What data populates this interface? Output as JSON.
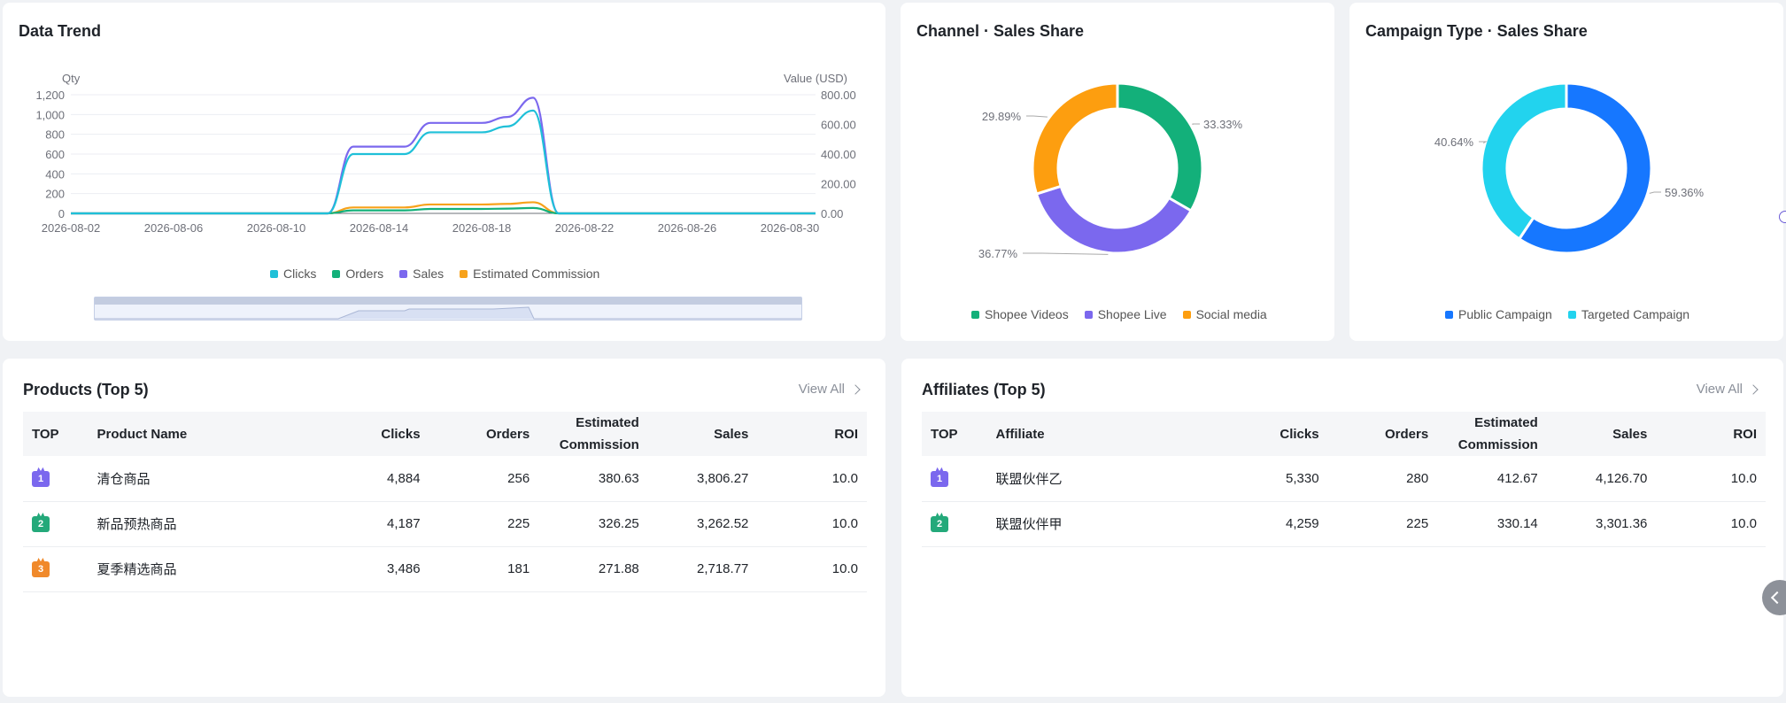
{
  "trend": {
    "title": "Data Trend",
    "left_axis_label": "Qty",
    "right_axis_label": "Value (USD)",
    "left_ticks": [
      "1,200",
      "1,000",
      "800",
      "600",
      "400",
      "200",
      "0"
    ],
    "right_ticks": [
      "800.00",
      "600.00",
      "400.00",
      "200.00",
      "0.00"
    ],
    "x_ticks": [
      "2026-08-02",
      "2026-08-06",
      "2026-08-10",
      "2026-08-14",
      "2026-08-18",
      "2026-08-22",
      "2026-08-26",
      "2026-08-30"
    ],
    "legend": [
      {
        "label": "Clicks",
        "color": "#1fc0d8"
      },
      {
        "label": "Orders",
        "color": "#13b07a"
      },
      {
        "label": "Sales",
        "color": "#7b68ee"
      },
      {
        "label": "Estimated Commission",
        "color": "#f7a21b"
      }
    ]
  },
  "chart_data": [
    {
      "type": "line",
      "x": [
        "2026-08-02",
        "2026-08-03",
        "2026-08-04",
        "2026-08-05",
        "2026-08-06",
        "2026-08-07",
        "2026-08-08",
        "2026-08-09",
        "2026-08-10",
        "2026-08-11",
        "2026-08-12",
        "2026-08-13",
        "2026-08-14",
        "2026-08-15",
        "2026-08-16",
        "2026-08-17",
        "2026-08-18",
        "2026-08-19",
        "2026-08-20",
        "2026-08-21",
        "2026-08-22",
        "2026-08-23",
        "2026-08-24",
        "2026-08-25",
        "2026-08-26",
        "2026-08-27",
        "2026-08-28",
        "2026-08-29",
        "2026-08-30",
        "2026-08-31"
      ],
      "series": [
        {
          "name": "Clicks",
          "axis": "left",
          "values": [
            0,
            0,
            0,
            0,
            0,
            0,
            0,
            0,
            0,
            0,
            0,
            600,
            600,
            600,
            820,
            820,
            820,
            880,
            1040,
            0,
            0,
            0,
            0,
            0,
            0,
            0,
            0,
            0,
            0,
            0
          ]
        },
        {
          "name": "Orders",
          "axis": "left",
          "values": [
            0,
            0,
            0,
            0,
            0,
            0,
            0,
            0,
            0,
            0,
            0,
            30,
            30,
            30,
            45,
            45,
            45,
            48,
            55,
            0,
            0,
            0,
            0,
            0,
            0,
            0,
            0,
            0,
            0,
            0
          ]
        },
        {
          "name": "Sales",
          "axis": "right",
          "values": [
            0,
            0,
            0,
            0,
            0,
            0,
            0,
            0,
            0,
            0,
            0,
            450,
            450,
            450,
            610,
            610,
            610,
            650,
            780,
            0,
            0,
            0,
            0,
            0,
            0,
            0,
            0,
            0,
            0,
            0
          ]
        },
        {
          "name": "Estimated Commission",
          "axis": "right",
          "values": [
            0,
            0,
            0,
            0,
            0,
            0,
            0,
            0,
            0,
            0,
            0,
            40,
            40,
            40,
            60,
            60,
            60,
            64,
            75,
            0,
            0,
            0,
            0,
            0,
            0,
            0,
            0,
            0,
            0,
            0
          ]
        }
      ],
      "title": "Data Trend",
      "ylabel": "Qty",
      "y2label": "Value (USD)",
      "ylim": [
        0,
        1200
      ],
      "y2lim": [
        0,
        800
      ],
      "grid": true,
      "legend": "bottom"
    },
    {
      "type": "pie",
      "title": "Channel · Sales Share",
      "labels": [
        "Shopee Videos",
        "Shopee Live",
        "Social media"
      ],
      "values": [
        33.33,
        36.77,
        29.89
      ],
      "colors": [
        "#13b07a",
        "#7b68ee",
        "#fd9e0f"
      ],
      "legend": "bottom"
    },
    {
      "type": "pie",
      "title": "Campaign Type · Sales Share",
      "labels": [
        "Public Campaign",
        "Targeted Campaign"
      ],
      "values": [
        59.36,
        40.64
      ],
      "colors": [
        "#1677ff",
        "#22d3ee"
      ],
      "legend": "bottom"
    }
  ],
  "channel": {
    "title": "Channel · Sales Share",
    "labels": [
      "33.33%",
      "36.77%",
      "29.89%"
    ],
    "legend": [
      {
        "label": "Shopee Videos",
        "color": "#13b07a"
      },
      {
        "label": "Shopee Live",
        "color": "#7b68ee"
      },
      {
        "label": "Social media",
        "color": "#fd9e0f"
      }
    ]
  },
  "campaign": {
    "title": "Campaign Type · Sales Share",
    "labels": [
      "59.36%",
      "40.64%"
    ],
    "legend": [
      {
        "label": "Public Campaign",
        "color": "#1677ff"
      },
      {
        "label": "Targeted Campaign",
        "color": "#22d3ee"
      }
    ]
  },
  "products": {
    "title": "Products (Top 5)",
    "view_all": "View All",
    "columns": [
      "TOP",
      "Product Name",
      "Clicks",
      "Orders",
      "Estimated Commission",
      "Sales",
      "ROI"
    ],
    "rows": [
      {
        "rank": "1",
        "name": "清仓商品",
        "clicks": "4,884",
        "orders": "256",
        "commission": "380.63",
        "sales": "3,806.27",
        "roi": "10.0"
      },
      {
        "rank": "2",
        "name": "新品预热商品",
        "clicks": "4,187",
        "orders": "225",
        "commission": "326.25",
        "sales": "3,262.52",
        "roi": "10.0"
      },
      {
        "rank": "3",
        "name": "夏季精选商品",
        "clicks": "3,486",
        "orders": "181",
        "commission": "271.88",
        "sales": "2,718.77",
        "roi": "10.0"
      }
    ]
  },
  "affiliates": {
    "title": "Affiliates (Top 5)",
    "view_all": "View All",
    "columns": [
      "TOP",
      "Affiliate",
      "Clicks",
      "Orders",
      "Estimated Commission",
      "Sales",
      "ROI"
    ],
    "rows": [
      {
        "rank": "1",
        "name": "联盟伙伴乙",
        "clicks": "5,330",
        "orders": "280",
        "commission": "412.67",
        "sales": "4,126.70",
        "roi": "10.0"
      },
      {
        "rank": "2",
        "name": "联盟伙伴甲",
        "clicks": "4,259",
        "orders": "225",
        "commission": "330.14",
        "sales": "3,301.36",
        "roi": "10.0"
      }
    ]
  }
}
